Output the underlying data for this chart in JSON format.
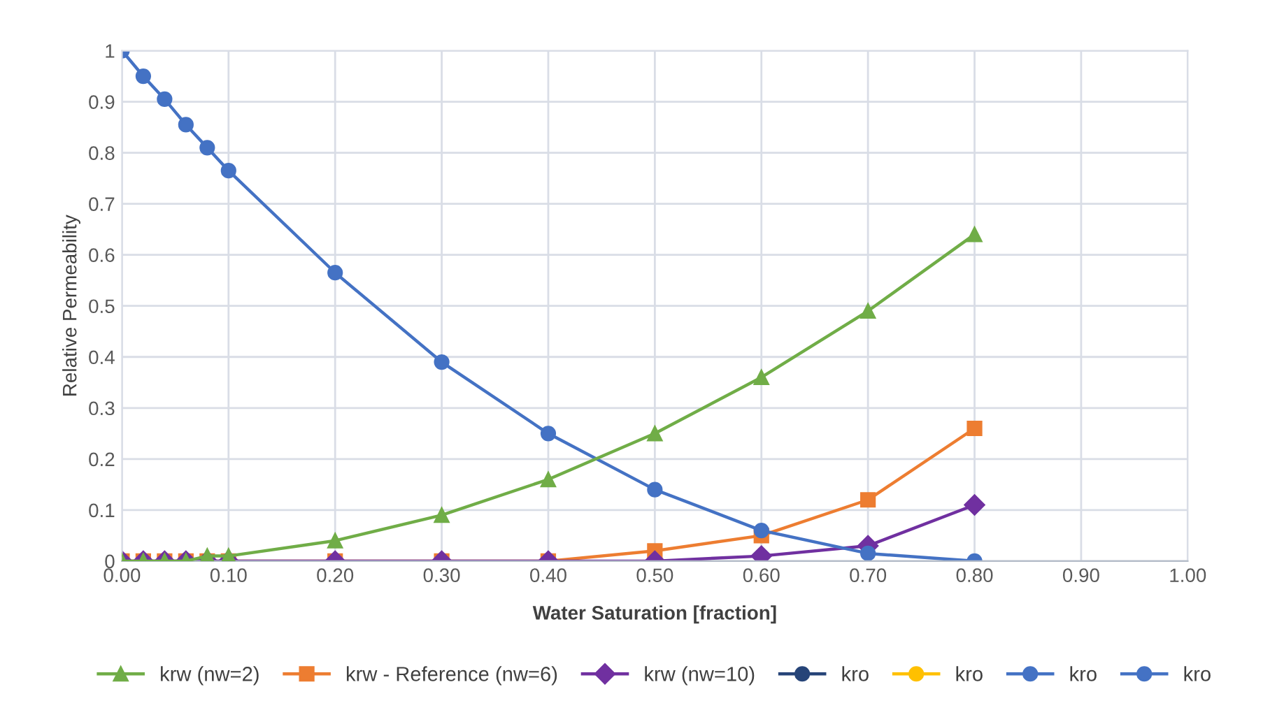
{
  "chart_data": {
    "type": "line",
    "xlabel": "Water Saturation [fraction]",
    "ylabel": "Relative Permeability",
    "x": [
      0,
      0.02,
      0.04,
      0.06,
      0.08,
      0.1,
      0.2,
      0.3,
      0.4,
      0.5,
      0.6,
      0.7,
      0.8
    ],
    "series": [
      {
        "name": "krw (nw=2)",
        "color": "#70ad47",
        "marker": "triangle",
        "values": [
          0,
          0,
          0,
          0,
          0.01,
          0.01,
          0.04,
          0.09,
          0.16,
          0.25,
          0.36,
          0.49,
          0.64
        ]
      },
      {
        "name": "krw - Reference (nw=6)",
        "color": "#ed7d31",
        "marker": "square",
        "values": [
          0,
          0,
          0,
          0,
          0,
          0,
          0,
          0,
          0,
          0.02,
          0.05,
          0.12,
          0.26
        ]
      },
      {
        "name": "krw (nw=10)",
        "color": "#7030a0",
        "marker": "diamond",
        "values": [
          0,
          0,
          0,
          0,
          0,
          0,
          0,
          0,
          0,
          0,
          0.01,
          0.03,
          0.11
        ]
      },
      {
        "name": "kro",
        "color": "#264478",
        "marker": "circle",
        "values": [
          null,
          null,
          null,
          null,
          null,
          null,
          null,
          null,
          null,
          null,
          null,
          null,
          null
        ]
      },
      {
        "name": "kro",
        "color": "#ffc000",
        "marker": "circle",
        "values": [
          null,
          null,
          null,
          null,
          null,
          null,
          null,
          null,
          null,
          null,
          null,
          null,
          null
        ]
      },
      {
        "name": "kro",
        "color": "#4472c4",
        "marker": "circle",
        "values": [
          null,
          null,
          null,
          null,
          null,
          null,
          null,
          null,
          null,
          null,
          null,
          null,
          null
        ]
      },
      {
        "name": "kro",
        "color": "#4472c4",
        "marker": "circle",
        "values": [
          1,
          0.95,
          0.905,
          0.855,
          0.81,
          0.765,
          0.565,
          0.39,
          0.25,
          0.14,
          0.06,
          0.015,
          0
        ]
      }
    ],
    "xlim": [
      0,
      1
    ],
    "ylim": [
      0,
      1
    ],
    "xticks": [
      {
        "value": 0,
        "label": "0.00"
      },
      {
        "value": 0.1,
        "label": "0.10"
      },
      {
        "value": 0.2,
        "label": "0.20"
      },
      {
        "value": 0.3,
        "label": "0.30"
      },
      {
        "value": 0.4,
        "label": "0.40"
      },
      {
        "value": 0.5,
        "label": "0.50"
      },
      {
        "value": 0.6,
        "label": "0.60"
      },
      {
        "value": 0.7,
        "label": "0.70"
      },
      {
        "value": 0.8,
        "label": "0.80"
      },
      {
        "value": 0.9,
        "label": "0.90"
      },
      {
        "value": 1,
        "label": "1.00"
      }
    ],
    "yticks": [
      0,
      0.1,
      0.2,
      0.3,
      0.4,
      0.5,
      0.6,
      0.7,
      0.8,
      0.9,
      1
    ],
    "grid": true,
    "legend": "bottom",
    "line_style": "solid"
  }
}
